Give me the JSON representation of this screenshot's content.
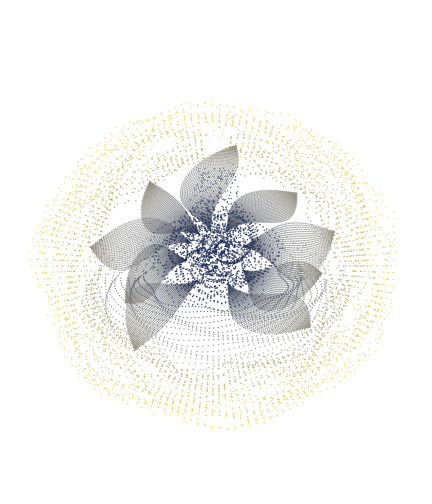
{
  "artwork": {
    "style": "generative dot-plot flower",
    "background_color": "#ffffff",
    "palette": [
      "#0b1d4a",
      "#2c3a5c",
      "#5f6470",
      "#8f8c7e",
      "#bdb36e",
      "#eedd4a",
      "#f4e25a"
    ],
    "layers": [
      {
        "name": "outer-yellow-ring",
        "color": "#efdc4e"
      },
      {
        "name": "middle-grey-petals",
        "color": "#7d7c74"
      },
      {
        "name": "inner-navy-core",
        "color": "#1a2a52"
      }
    ]
  }
}
